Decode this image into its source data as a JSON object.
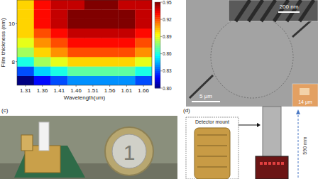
{
  "chart_data": {
    "type": "heatmap",
    "x_label": "Wavelength(um)",
    "y_label": "Film thickness (nm)",
    "x": [
      1.31,
      1.36,
      1.41,
      1.46,
      1.51,
      1.56,
      1.61,
      1.66
    ],
    "y": [
      7,
      7.5,
      8,
      8.5,
      9,
      9.5,
      10,
      10.5,
      11
    ],
    "cells": [
      [
        0.8,
        0.82,
        0.83,
        0.84,
        0.84,
        0.84,
        0.84,
        0.83
      ],
      [
        0.83,
        0.85,
        0.86,
        0.87,
        0.87,
        0.87,
        0.87,
        0.86
      ],
      [
        0.86,
        0.88,
        0.89,
        0.9,
        0.9,
        0.9,
        0.9,
        0.89
      ],
      [
        0.88,
        0.9,
        0.91,
        0.92,
        0.92,
        0.92,
        0.92,
        0.91
      ],
      [
        0.89,
        0.91,
        0.92,
        0.93,
        0.93,
        0.93,
        0.93,
        0.92
      ],
      [
        0.9,
        0.92,
        0.93,
        0.94,
        0.94,
        0.94,
        0.94,
        0.93
      ],
      [
        0.9,
        0.93,
        0.94,
        0.95,
        0.95,
        0.95,
        0.95,
        0.94
      ],
      [
        0.9,
        0.93,
        0.94,
        0.95,
        0.95,
        0.95,
        0.95,
        0.94
      ],
      [
        0.9,
        0.93,
        0.94,
        0.94,
        0.95,
        0.95,
        0.94,
        0.94
      ]
    ],
    "xlim": [
      1.285,
      1.685
    ],
    "ylim": [
      6.75,
      11.25
    ],
    "xticks": [
      1.31,
      1.36,
      1.41,
      1.46,
      1.51,
      1.56,
      1.61,
      1.66
    ],
    "yticks": [
      8,
      10
    ],
    "colorbar_range": [
      0.8,
      0.95
    ],
    "colorbar_ticks": [
      {
        "value": 0.8,
        "label": "0.80"
      },
      0.83,
      0.86,
      0.89,
      0.92,
      0.95
    ]
  },
  "panels": {
    "b": {
      "scale_labels": [
        "200 nm",
        "5 μm",
        "14 μm"
      ]
    },
    "c": {
      "label": "(c)",
      "coin_text": "1"
    },
    "d": {
      "label": "(d)",
      "inset_label": "Detector mount",
      "height_label": "590 mm"
    }
  }
}
